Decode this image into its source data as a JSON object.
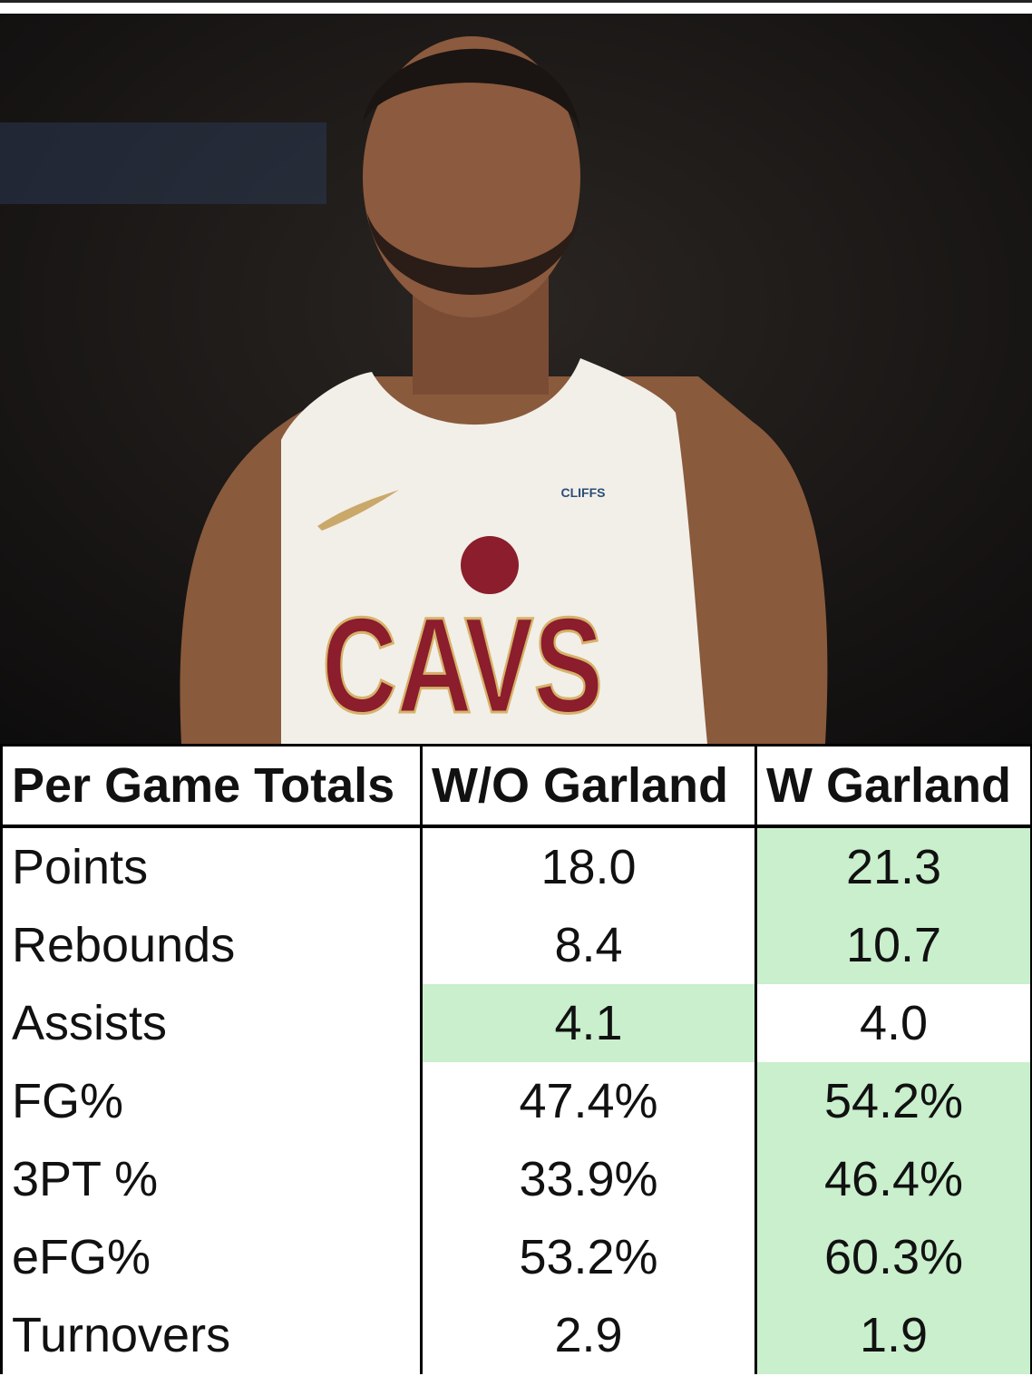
{
  "photo": {
    "jersey_text": "CAVS",
    "sponsor": "CLIFFS"
  },
  "table": {
    "header": [
      "Per Game Totals",
      "W/O Garland",
      "W Garland"
    ],
    "highlight_color": "#c9efcc",
    "rows": [
      [
        "Points",
        "18.0",
        {
          "text": "21.3",
          "highlight": true
        }
      ],
      [
        "Rebounds",
        "8.4",
        {
          "text": "10.7",
          "highlight": true
        }
      ],
      [
        "Assists",
        {
          "text": "4.1",
          "highlight": true
        },
        "4.0"
      ],
      [
        "FG%",
        "47.4%",
        {
          "text": "54.2%",
          "highlight": true
        }
      ],
      [
        "3PT %",
        "33.9%",
        {
          "text": "46.4%",
          "highlight": true
        }
      ],
      [
        "eFG%",
        "53.2%",
        {
          "text": "60.3%",
          "highlight": true
        }
      ],
      [
        "Turnovers",
        "2.9",
        {
          "text": "1.9",
          "highlight": true
        }
      ]
    ]
  }
}
